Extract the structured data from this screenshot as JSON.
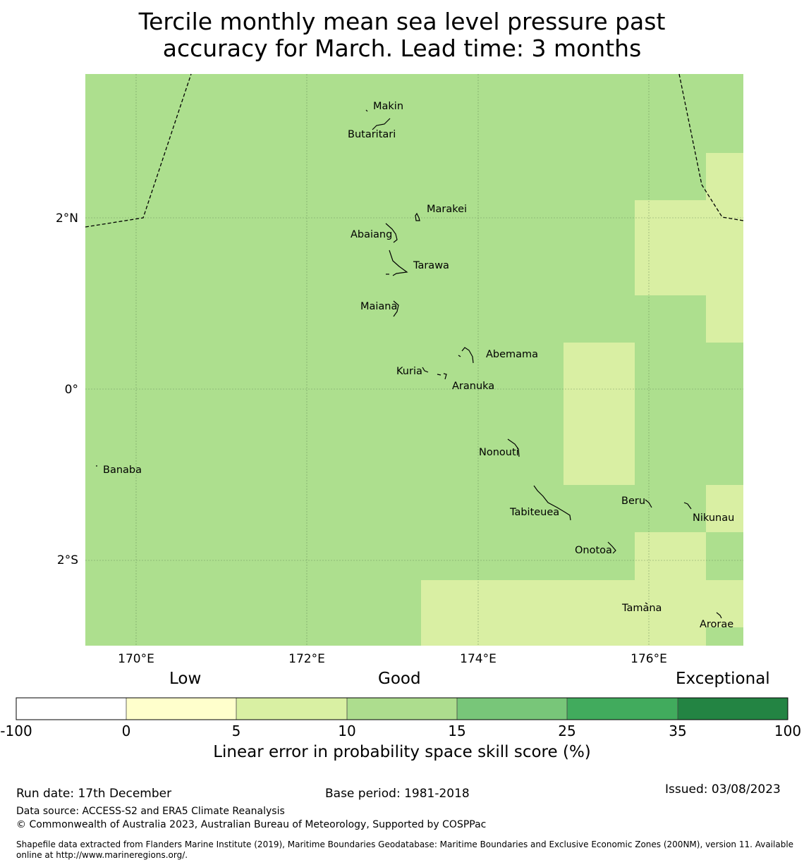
{
  "title_line1": "Tercile monthly mean sea level pressure past",
  "title_line2": "accuracy for March. Lead time: 3 months",
  "map": {
    "lon_labels": [
      "170°E",
      "172°E",
      "174°E",
      "176°E"
    ],
    "lat_labels": [
      "2°N",
      "0°",
      "2°S"
    ],
    "places": [
      "Makin",
      "Butaritari",
      "Marakei",
      "Abaiang",
      "Tarawa",
      "Maiana",
      "Abemama",
      "Kuria",
      "Aranuka",
      "Nonouti",
      "Banaba",
      "Tabiteuea",
      "Beru",
      "Nikunau",
      "Onotoa",
      "Tamana",
      "Arorae"
    ],
    "colors": {
      "skill_10_15": "#addf8e",
      "skill_5_10": "#d9efa3"
    }
  },
  "colorbar": {
    "categories": [
      "Low",
      "Good",
      "Exceptional"
    ],
    "ticks": [
      "-100",
      "0",
      "5",
      "10",
      "15",
      "25",
      "35",
      "100"
    ],
    "colors": [
      "#ffffff",
      "#ffffcc",
      "#d9f0a3",
      "#addd8e",
      "#78c679",
      "#41ab5d",
      "#238443"
    ],
    "label": "Linear error in probability space skill score (%)"
  },
  "footer": {
    "run_date": "Run date: 17th December",
    "base_period": "Base period: 1981-2018",
    "issued": "Issued: 03/08/2023",
    "data_source": "Data source: ACCESS-S2 and ERA5 Climate Reanalysis",
    "copyright": "© Commonwealth of Australia 2023, Australian Bureau of Meteorology, Supported by COSPPac",
    "shapefile_line1": "Shapefile data extracted from Flanders Marine Institute (2019), Maritime Boundaries Geodatabase: Maritime Boundaries and Exclusive Economic Zones (200NM), version 11. Available",
    "shapefile_line2": "online at http://www.marineregions.org/."
  }
}
